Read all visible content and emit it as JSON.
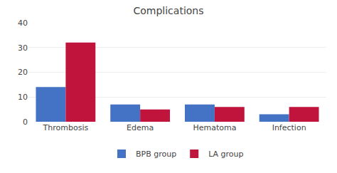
{
  "chart_data": {
    "type": "bar",
    "title": "Complications",
    "categories": [
      "Thrombosis",
      "Edema",
      "Hematoma",
      "Infection"
    ],
    "series": [
      {
        "name": "BPB group",
        "color": "#4472c4",
        "values": [
          14,
          7,
          7,
          3
        ]
      },
      {
        "name": "LA group",
        "color": "#c0143c",
        "values": [
          32,
          5,
          6,
          6
        ]
      }
    ],
    "ylim": [
      0,
      40
    ],
    "yticks": [
      0,
      10,
      20,
      30,
      40
    ],
    "grid": true,
    "legend": "bottom"
  }
}
